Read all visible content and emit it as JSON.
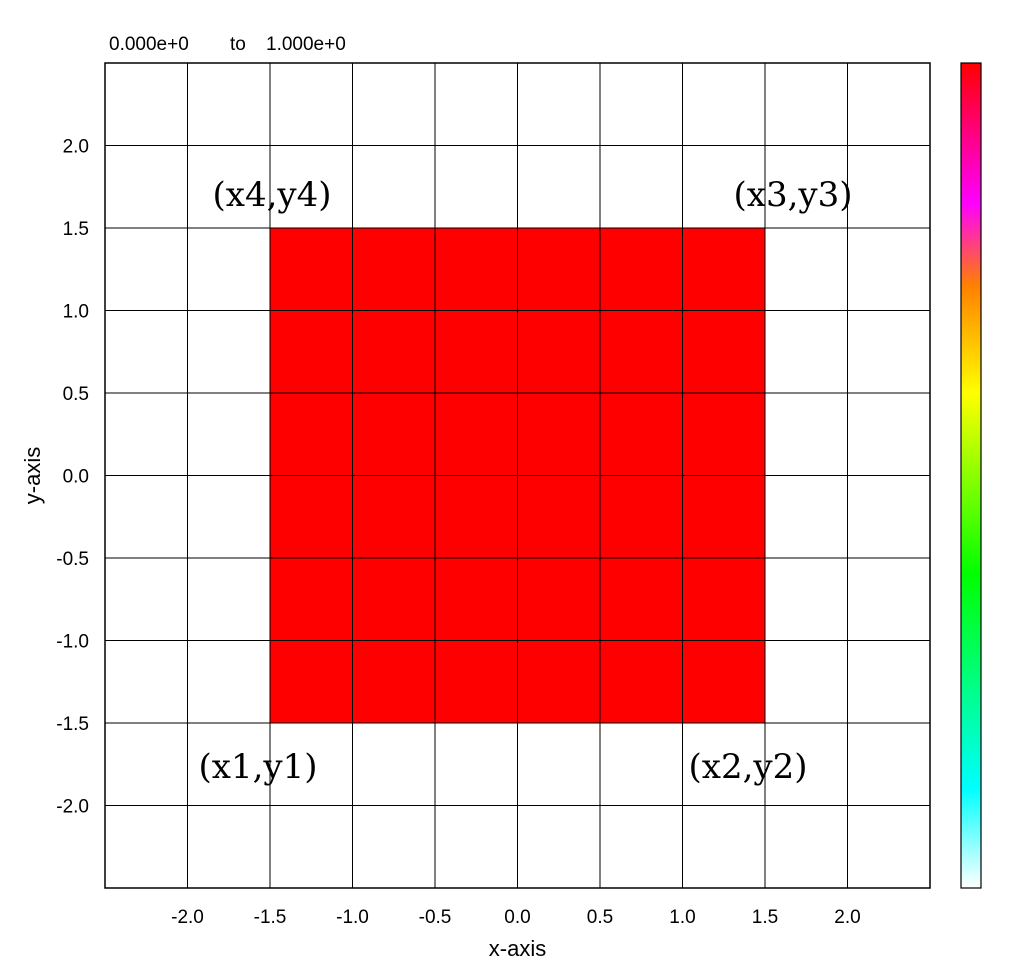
{
  "chart_data": {
    "type": "heatmap",
    "title": "",
    "range_label": {
      "min": "0.000e+0",
      "joiner": "to",
      "max": "1.000e+0"
    },
    "xlabel": "x-axis",
    "ylabel": "y-axis",
    "xlim": [
      -2.5,
      2.5
    ],
    "ylim": [
      -2.5,
      2.5
    ],
    "grid": true,
    "x_ticks": [
      -2.0,
      -1.5,
      -1.0,
      -0.5,
      0.0,
      0.5,
      1.0,
      1.5,
      2.0
    ],
    "y_ticks": [
      2.0,
      1.5,
      1.0,
      0.5,
      0.0,
      -0.5,
      -1.0,
      -1.5,
      -2.0
    ],
    "x_tick_labels": [
      "-2.0",
      "-1.5",
      "-1.0",
      "-0.5",
      "0.0",
      "0.5",
      "1.0",
      "1.5",
      "2.0"
    ],
    "y_tick_labels": [
      "2.0",
      "1.5",
      "1.0",
      "0.5",
      "0.0",
      "-0.5",
      "-1.0",
      "-1.5",
      "-2.0"
    ],
    "cells": [
      {
        "x_range": [
          -1.5,
          1.5
        ],
        "y_range": [
          -1.5,
          1.5
        ],
        "value": 1.0,
        "color": "#ff0000"
      }
    ],
    "colorbar": {
      "placement": "right",
      "stops": [
        {
          "value": 0.0,
          "color": "#ffffff"
        },
        {
          "value": 0.12,
          "color": "#00ffff"
        },
        {
          "value": 0.38,
          "color": "#00ff00"
        },
        {
          "value": 0.6,
          "color": "#ffff00"
        },
        {
          "value": 0.73,
          "color": "#ff8000"
        },
        {
          "value": 0.83,
          "color": "#ff00ff"
        },
        {
          "value": 1.0,
          "color": "#ff0000"
        }
      ]
    },
    "annotations": [
      {
        "text": "(x4,y4)",
        "x": -1.5,
        "y": 1.5,
        "corner": "top-left"
      },
      {
        "text": "(x3,y3)",
        "x": 1.5,
        "y": 1.5,
        "corner": "top-right"
      },
      {
        "text": "(x1,y1)",
        "x": -1.5,
        "y": -1.5,
        "corner": "bottom-left"
      },
      {
        "text": "(x2,y2)",
        "x": 1.5,
        "y": -1.5,
        "corner": "bottom-right"
      }
    ]
  },
  "colors": {
    "background": "#ffffff",
    "axis": "#000000",
    "grid": "#000000",
    "fill": "#ff0000"
  }
}
